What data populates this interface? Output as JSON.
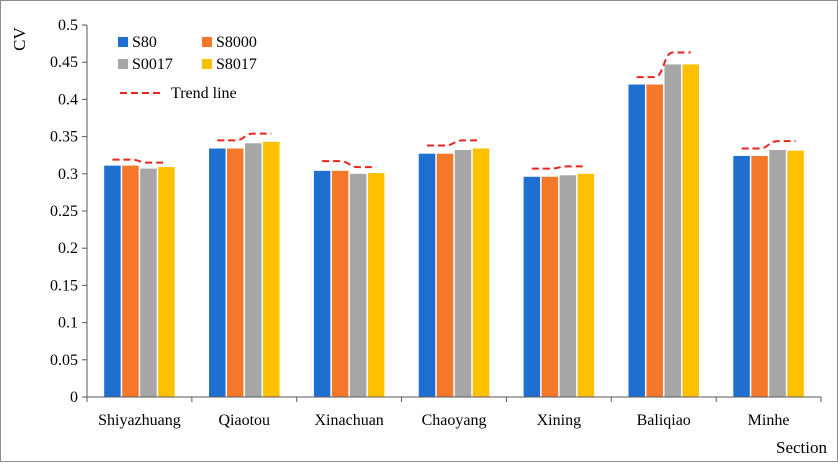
{
  "chart_data": {
    "type": "bar",
    "title": "",
    "xlabel": "Section",
    "ylabel": "CV",
    "ylim": [
      0,
      0.5
    ],
    "yticks": [
      0,
      0.05,
      0.1,
      0.15,
      0.2,
      0.25,
      0.3,
      0.35,
      0.4,
      0.45,
      0.5
    ],
    "ytick_labels": [
      "0",
      "0.05",
      "0.1",
      "0.15",
      "0.2",
      "0.25",
      "0.3",
      "0.35",
      "0.4",
      "0.45",
      "0.5"
    ],
    "grid": false,
    "legend_position": "top-left",
    "categories": [
      "Shiyazhuang",
      "Qiaotou",
      "Xinachuan",
      "Chaoyang",
      "Xining",
      "Baliqiao",
      "Minhe"
    ],
    "series": [
      {
        "name": "S80",
        "color": "#1f6fd1",
        "values": [
          0.311,
          0.334,
          0.304,
          0.327,
          0.296,
          0.42,
          0.324
        ]
      },
      {
        "name": "S8000",
        "color": "#f4772a",
        "values": [
          0.311,
          0.334,
          0.304,
          0.327,
          0.296,
          0.42,
          0.324
        ]
      },
      {
        "name": "S0017",
        "color": "#a6a6a6",
        "values": [
          0.307,
          0.341,
          0.3,
          0.332,
          0.298,
          0.447,
          0.332
        ]
      },
      {
        "name": "S8017",
        "color": "#ffc000",
        "values": [
          0.309,
          0.343,
          0.301,
          0.334,
          0.3,
          0.447,
          0.331
        ]
      }
    ],
    "trend_line": {
      "name": "Trend line",
      "color": "#e8251f",
      "style": "dashed",
      "values": [
        [
          0.319,
          0.319,
          0.315,
          0.315
        ],
        [
          0.345,
          0.345,
          0.354,
          0.354
        ],
        [
          0.317,
          0.317,
          0.309,
          0.309
        ],
        [
          0.338,
          0.338,
          0.345,
          0.345
        ],
        [
          0.307,
          0.307,
          0.31,
          0.31
        ],
        [
          0.43,
          0.43,
          0.463,
          0.463
        ],
        [
          0.334,
          0.334,
          0.344,
          0.344
        ]
      ]
    }
  }
}
